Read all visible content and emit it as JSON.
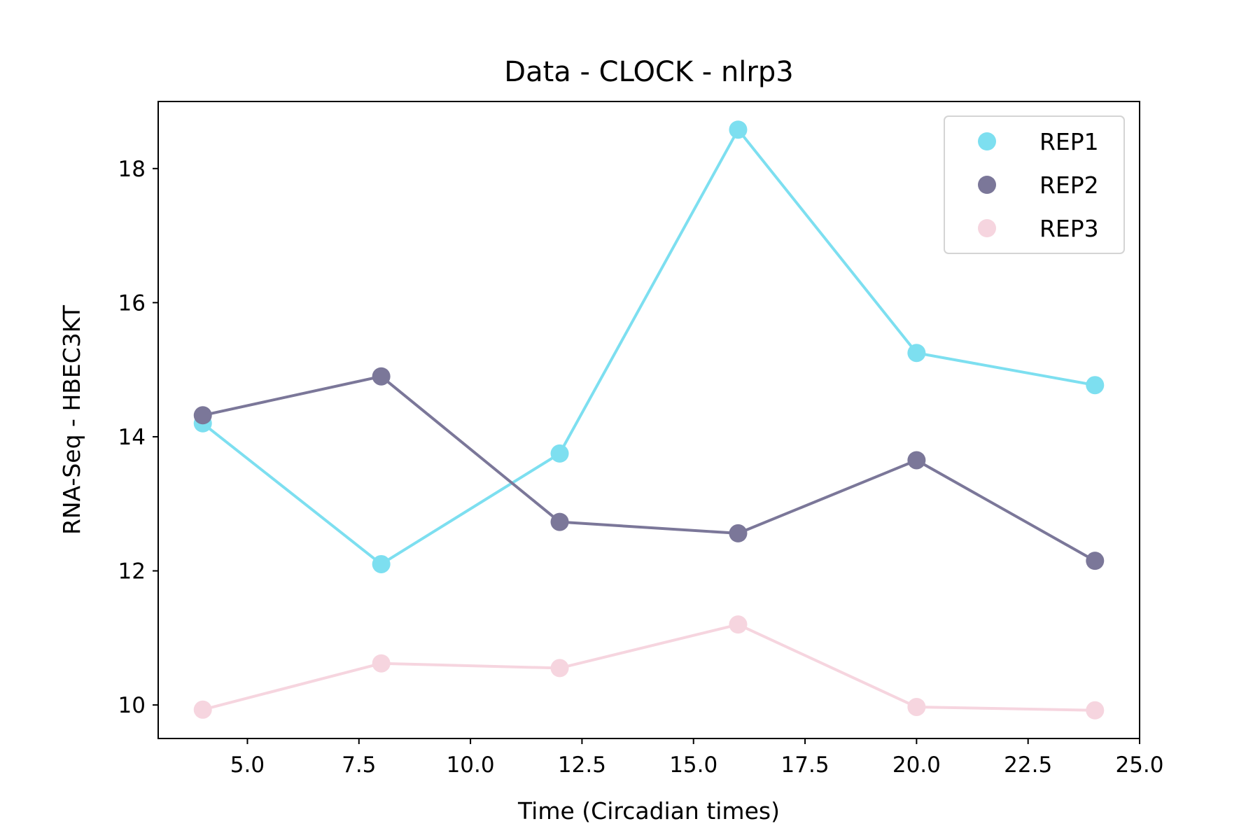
{
  "chart_data": {
    "type": "line",
    "title": "Data - CLOCK - nlrp3",
    "xlabel": "Time (Circadian times)",
    "ylabel": "RNA-Seq - HBEC3KT",
    "xlim": [
      3.0,
      25.0
    ],
    "ylim": [
      9.5,
      19.0
    ],
    "xticks": [
      5.0,
      7.5,
      10.0,
      12.5,
      15.0,
      17.5,
      20.0,
      22.5,
      25.0
    ],
    "xtick_labels": [
      "5.0",
      "7.5",
      "10.0",
      "12.5",
      "15.0",
      "17.5",
      "20.0",
      "22.5",
      "25.0"
    ],
    "yticks": [
      10,
      12,
      14,
      16,
      18
    ],
    "ytick_labels": [
      "10",
      "12",
      "14",
      "16",
      "18"
    ],
    "grid": false,
    "legend_position": "top-right",
    "x": [
      4,
      8,
      12,
      16,
      20,
      24
    ],
    "series": [
      {
        "name": "REP1",
        "color": "#7ddff0",
        "values": [
          14.2,
          12.1,
          13.75,
          18.58,
          15.25,
          14.77
        ]
      },
      {
        "name": "REP2",
        "color": "#7b7799",
        "values": [
          14.32,
          14.9,
          12.73,
          12.56,
          13.65,
          12.15
        ]
      },
      {
        "name": "REP3",
        "color": "#f6d5df",
        "values": [
          9.93,
          10.62,
          10.55,
          11.2,
          9.97,
          9.92
        ]
      }
    ]
  }
}
